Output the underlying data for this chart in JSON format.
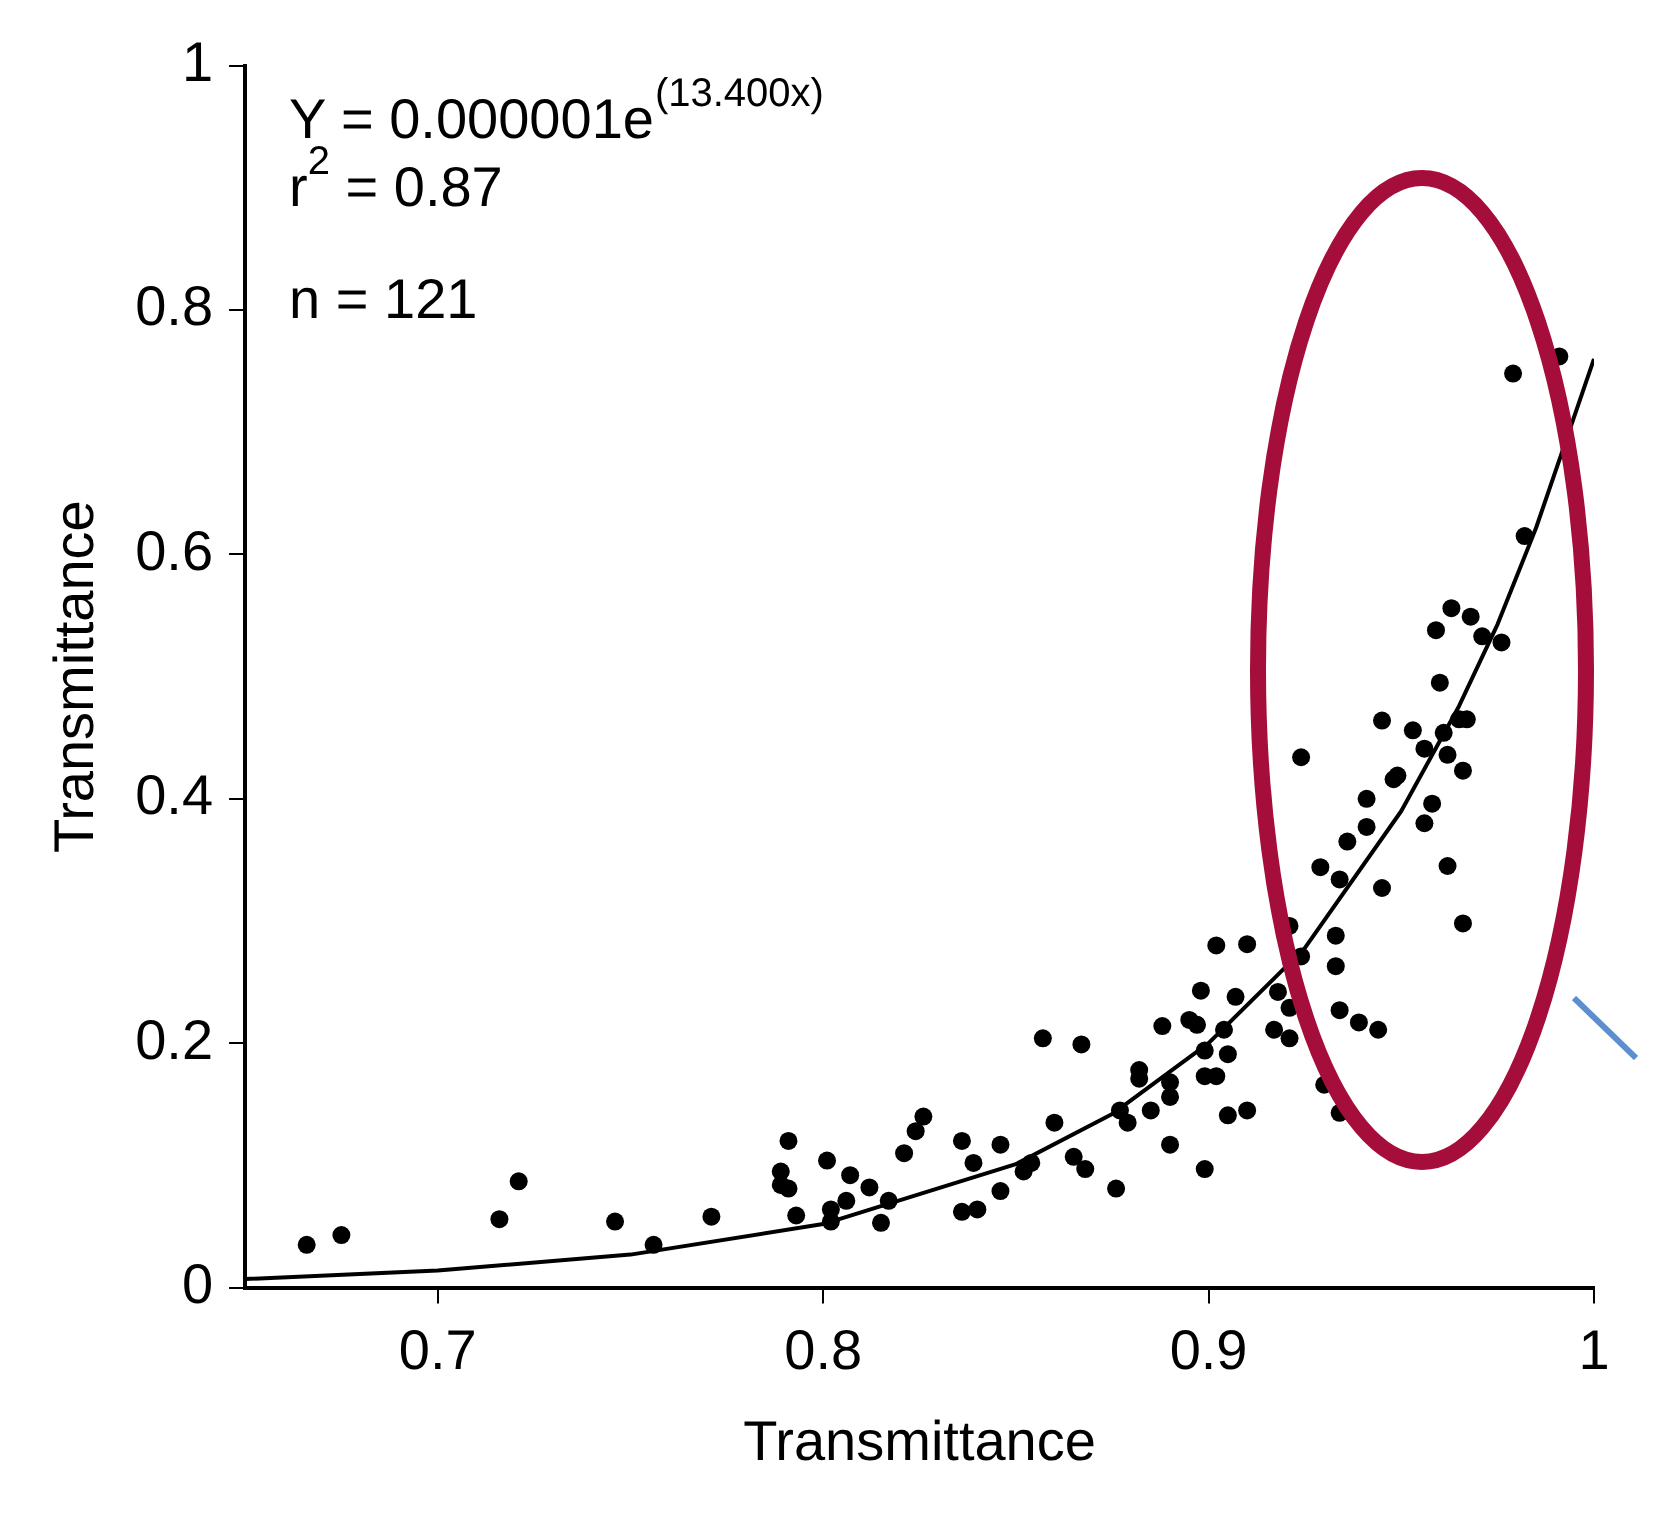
{
  "chart_data": {
    "type": "scatter",
    "xlabel": "Transmittance",
    "ylabel": "Transmittance",
    "xlim": [
      0.65,
      1
    ],
    "xticks": [
      0.7,
      0.8,
      0.9,
      1
    ],
    "ylim": [
      0,
      1
    ],
    "yticks": [
      0,
      0.2,
      0.4,
      0.6,
      0.8,
      1
    ],
    "grid": false,
    "legend": false,
    "marker": "circle",
    "annotations": [
      "Y = 0.000001e$^{(13.400x)}$",
      "r$^{2}$ = 0.87",
      "n = 121"
    ],
    "series": [
      {
        "type": "scatter",
        "color": "#000000",
        "x": [
          0.666,
          0.675,
          0.716,
          0.721,
          0.746,
          0.756,
          0.771,
          0.789,
          0.791,
          0.789,
          0.791,
          0.793,
          0.801,
          0.807,
          0.806,
          0.802,
          0.802,
          0.812,
          0.817,
          0.815,
          0.821,
          0.824,
          0.826,
          0.836,
          0.839,
          0.846,
          0.854,
          0.852,
          0.846,
          0.836,
          0.84,
          0.857,
          0.867,
          0.86,
          0.865,
          0.868,
          0.876,
          0.877,
          0.879,
          0.882,
          0.882,
          0.885,
          0.89,
          0.89,
          0.89,
          0.888,
          0.895,
          0.898,
          0.897,
          0.899,
          0.899,
          0.902,
          0.904,
          0.905,
          0.899,
          0.905,
          0.91,
          0.902,
          0.91,
          0.907,
          0.918,
          0.921,
          0.917,
          0.921,
          0.93,
          0.934,
          0.921,
          0.924,
          0.933,
          0.933,
          0.934,
          0.939,
          0.944,
          0.929,
          0.934,
          0.936,
          0.941,
          0.941,
          0.945,
          0.948,
          0.979,
          0.991,
          0.982,
          0.963,
          0.968,
          0.959,
          0.971,
          0.976,
          0.96,
          0.945,
          0.953,
          0.965,
          0.967,
          0.961,
          0.956,
          0.962,
          0.966,
          0.924,
          0.949,
          0.958,
          0.956,
          0.962,
          0.966
        ],
        "values": [
          0.035,
          0.043,
          0.056,
          0.087,
          0.054,
          0.035,
          0.058,
          0.095,
          0.12,
          0.084,
          0.081,
          0.059,
          0.104,
          0.092,
          0.071,
          0.064,
          0.054,
          0.082,
          0.071,
          0.053,
          0.11,
          0.128,
          0.14,
          0.12,
          0.102,
          0.117,
          0.102,
          0.095,
          0.079,
          0.062,
          0.064,
          0.204,
          0.199,
          0.135,
          0.107,
          0.097,
          0.081,
          0.145,
          0.135,
          0.178,
          0.171,
          0.145,
          0.168,
          0.156,
          0.117,
          0.214,
          0.219,
          0.243,
          0.215,
          0.194,
          0.173,
          0.173,
          0.211,
          0.191,
          0.097,
          0.141,
          0.145,
          0.28,
          0.281,
          0.238,
          0.242,
          0.229,
          0.211,
          0.204,
          0.166,
          0.143,
          0.296,
          0.271,
          0.288,
          0.263,
          0.227,
          0.217,
          0.211,
          0.344,
          0.334,
          0.365,
          0.377,
          0.4,
          0.327,
          0.416,
          0.748,
          0.762,
          0.615,
          0.556,
          0.549,
          0.538,
          0.533,
          0.528,
          0.495,
          0.464,
          0.456,
          0.465,
          0.465,
          0.454,
          0.441,
          0.436,
          0.423,
          0.434,
          0.419,
          0.396,
          0.38,
          0.345,
          0.298
        ]
      },
      {
        "type": "line",
        "color": "#000000",
        "marker": "none",
        "x": [
          0.65,
          0.7,
          0.75,
          0.8,
          0.85,
          0.875,
          0.9,
          0.925,
          0.95,
          0.965,
          0.975,
          0.985,
          1
        ],
        "values": [
          0.007,
          0.014,
          0.027,
          0.052,
          0.101,
          0.142,
          0.2,
          0.278,
          0.39,
          0.476,
          0.543,
          0.622,
          0.76
        ]
      }
    ]
  }
}
